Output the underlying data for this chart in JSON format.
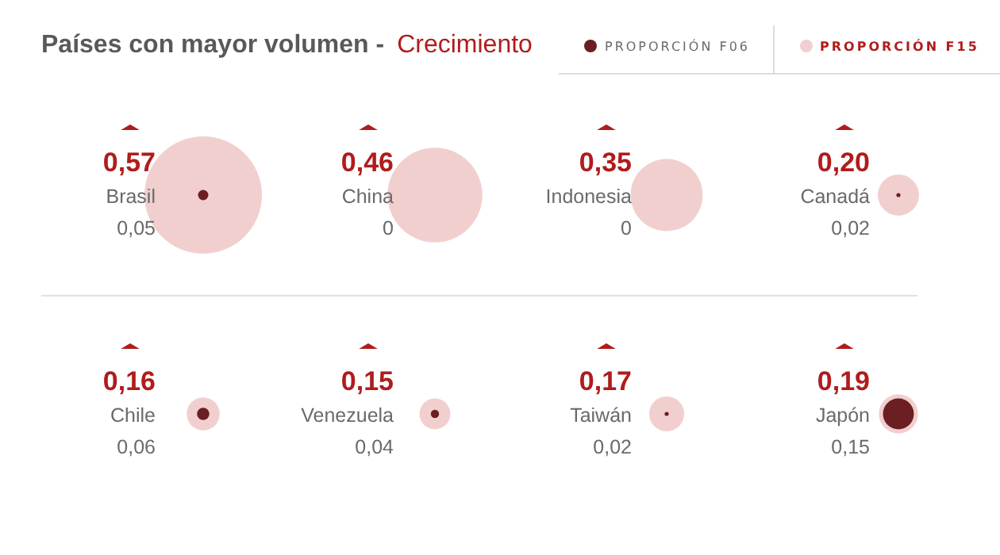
{
  "chart_data": {
    "type": "other",
    "title": "Países con mayor volumen  -",
    "subtitle": "Crecimiento",
    "categories": [
      "Brasil",
      "China",
      "Indonesia",
      "Canadá",
      "Chile",
      "Venezuela",
      "Taiwán",
      "Japón"
    ],
    "legend": "top right",
    "series": [
      {
        "name": "PROPORCIÓN F06",
        "color": "#6b1f22",
        "values": [
          0.05,
          0,
          0,
          0.02,
          0.06,
          0.04,
          0.02,
          0.15
        ],
        "value_labels": [
          "0,05",
          "0",
          "0",
          "0,02",
          "0,06",
          "0,04",
          "0,02",
          "0,15"
        ]
      },
      {
        "name": "PROPORCIÓN F15",
        "color": "#f2cfcf",
        "values": [
          0.57,
          0.46,
          0.35,
          0.2,
          0.16,
          0.15,
          0.17,
          0.19
        ],
        "value_labels": [
          "0,57",
          "0,46",
          "0,35",
          "0,20",
          "0,16",
          "0,15",
          "0,17",
          "0,19"
        ]
      }
    ]
  }
}
